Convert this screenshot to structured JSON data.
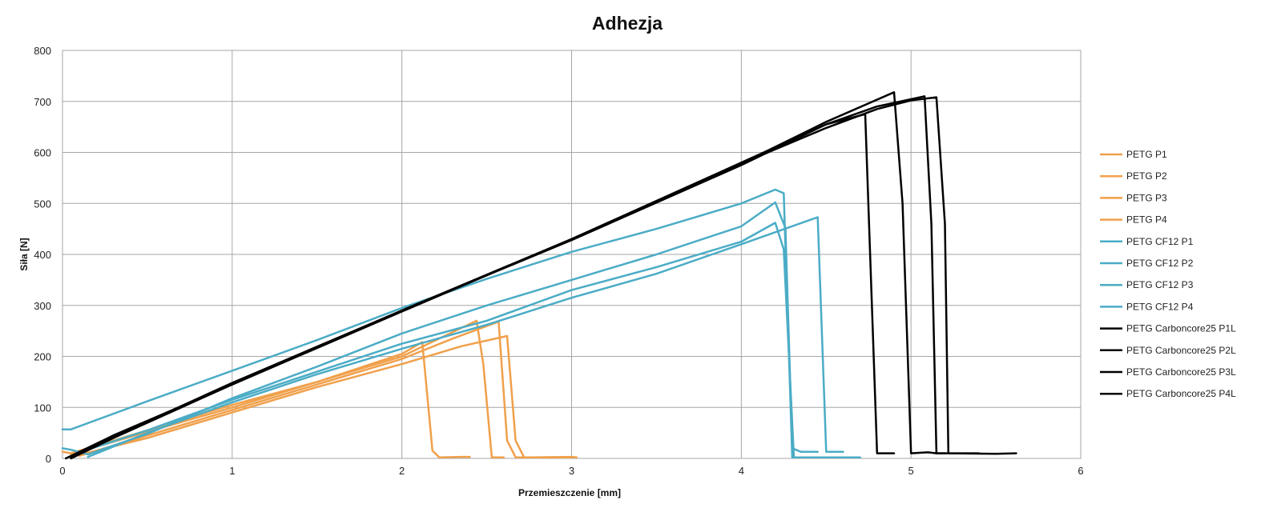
{
  "chart_data": {
    "type": "line",
    "title": "Adhezja",
    "xlabel": "Przemieszczenie [mm]",
    "ylabel": "Siła [N]",
    "xlim": [
      0,
      6
    ],
    "ylim": [
      0,
      800
    ],
    "xticks": [
      "0",
      "1",
      "2",
      "3",
      "4",
      "5",
      "6"
    ],
    "yticks": [
      "0",
      "100",
      "200",
      "300",
      "400",
      "500",
      "600",
      "700",
      "800"
    ],
    "grid": true,
    "legend_position": "right",
    "colors": {
      "petg": "#F0A04B",
      "cf12": "#4BACC6",
      "carboncore": "#000000",
      "grid": "#A6A6A6"
    },
    "series": [
      {
        "name": "PETG P1",
        "color": "#F0A04B",
        "points": [
          [
            0,
            13
          ],
          [
            0.05,
            10
          ],
          [
            0.15,
            20
          ],
          [
            0.5,
            55
          ],
          [
            1.0,
            105
          ],
          [
            1.5,
            150
          ],
          [
            2.0,
            205
          ],
          [
            2.12,
            228
          ],
          [
            2.18,
            15
          ],
          [
            2.22,
            2
          ],
          [
            2.35,
            3
          ],
          [
            2.4,
            3
          ]
        ]
      },
      {
        "name": "PETG P2",
        "color": "#F0A04B",
        "points": [
          [
            0.05,
            8
          ],
          [
            0.15,
            18
          ],
          [
            0.5,
            52
          ],
          [
            1.0,
            100
          ],
          [
            1.5,
            150
          ],
          [
            2.0,
            200
          ],
          [
            2.44,
            270
          ],
          [
            2.48,
            185
          ],
          [
            2.53,
            2
          ],
          [
            2.6,
            2
          ]
        ]
      },
      {
        "name": "PETG P3",
        "color": "#F0A04B",
        "points": [
          [
            0.1,
            5
          ],
          [
            0.5,
            45
          ],
          [
            1.0,
            95
          ],
          [
            1.5,
            145
          ],
          [
            2.0,
            195
          ],
          [
            2.3,
            235
          ],
          [
            2.57,
            268
          ],
          [
            2.62,
            35
          ],
          [
            2.67,
            2
          ],
          [
            2.75,
            2
          ],
          [
            3.0,
            3
          ],
          [
            3.03,
            2
          ]
        ]
      },
      {
        "name": "PETG P4",
        "color": "#F0A04B",
        "points": [
          [
            0.05,
            3
          ],
          [
            0.5,
            40
          ],
          [
            1.0,
            90
          ],
          [
            1.5,
            140
          ],
          [
            2.0,
            185
          ],
          [
            2.35,
            220
          ],
          [
            2.62,
            240
          ],
          [
            2.67,
            35
          ],
          [
            2.72,
            2
          ],
          [
            2.9,
            2
          ],
          [
            3.0,
            2
          ]
        ]
      },
      {
        "name": "PETG CF12 P1",
        "color": "#4BACC6",
        "points": [
          [
            0,
            57
          ],
          [
            0.05,
            57
          ],
          [
            0.5,
            112
          ],
          [
            1.0,
            172
          ],
          [
            1.5,
            232
          ],
          [
            2.0,
            295
          ],
          [
            2.5,
            352
          ],
          [
            3.0,
            405
          ],
          [
            3.5,
            450
          ],
          [
            4.0,
            500
          ],
          [
            4.2,
            527
          ],
          [
            4.25,
            520
          ],
          [
            4.3,
            2
          ],
          [
            4.7,
            2
          ]
        ]
      },
      {
        "name": "PETG CF12 P2",
        "color": "#4BACC6",
        "points": [
          [
            0,
            20
          ],
          [
            0.05,
            17
          ],
          [
            0.15,
            8
          ],
          [
            0.5,
            48
          ],
          [
            1.0,
            118
          ],
          [
            1.5,
            180
          ],
          [
            2.0,
            245
          ],
          [
            2.5,
            300
          ],
          [
            3.0,
            350
          ],
          [
            3.5,
            400
          ],
          [
            4.0,
            455
          ],
          [
            4.2,
            502
          ],
          [
            4.26,
            452
          ],
          [
            4.3,
            20
          ],
          [
            4.35,
            13
          ],
          [
            4.45,
            13
          ]
        ]
      },
      {
        "name": "PETG CF12 P3",
        "color": "#4BACC6",
        "points": [
          [
            0.1,
            12
          ],
          [
            0.5,
            55
          ],
          [
            1.0,
            115
          ],
          [
            1.5,
            170
          ],
          [
            2.0,
            225
          ],
          [
            2.5,
            270
          ],
          [
            3.0,
            330
          ],
          [
            3.5,
            375
          ],
          [
            4.0,
            425
          ],
          [
            4.2,
            462
          ],
          [
            4.25,
            410
          ],
          [
            4.31,
            2
          ],
          [
            4.5,
            2
          ]
        ]
      },
      {
        "name": "PETG CF12 P4",
        "color": "#4BACC6",
        "points": [
          [
            0.15,
            3
          ],
          [
            0.5,
            50
          ],
          [
            1.0,
            110
          ],
          [
            1.5,
            165
          ],
          [
            2.0,
            215
          ],
          [
            2.5,
            262
          ],
          [
            3.0,
            315
          ],
          [
            3.5,
            362
          ],
          [
            4.0,
            420
          ],
          [
            4.45,
            473
          ],
          [
            4.5,
            13
          ],
          [
            4.6,
            13
          ]
        ]
      },
      {
        "name": "PETG Carboncore25 P1L",
        "color": "#000000",
        "points": [
          [
            0.02,
            0
          ],
          [
            0.3,
            45
          ],
          [
            1.0,
            145
          ],
          [
            2.0,
            290
          ],
          [
            3.0,
            430
          ],
          [
            4.0,
            580
          ],
          [
            4.5,
            655
          ],
          [
            4.73,
            675
          ],
          [
            4.8,
            10
          ],
          [
            4.9,
            10
          ]
        ]
      },
      {
        "name": "PETG Carboncore25 P2L",
        "color": "#000000",
        "points": [
          [
            0.05,
            0
          ],
          [
            0.3,
            40
          ],
          [
            1.0,
            145
          ],
          [
            2.0,
            288
          ],
          [
            3.0,
            430
          ],
          [
            4.0,
            578
          ],
          [
            4.5,
            660
          ],
          [
            4.9,
            718
          ],
          [
            4.95,
            500
          ],
          [
            5.0,
            10
          ],
          [
            5.1,
            12
          ],
          [
            5.15,
            10
          ],
          [
            5.2,
            10
          ]
        ]
      },
      {
        "name": "PETG Carboncore25 P3L",
        "color": "#000000",
        "points": [
          [
            0.05,
            2
          ],
          [
            0.3,
            42
          ],
          [
            1.0,
            148
          ],
          [
            2.0,
            290
          ],
          [
            3.0,
            428
          ],
          [
            4.0,
            575
          ],
          [
            4.5,
            655
          ],
          [
            4.8,
            690
          ],
          [
            5.08,
            710
          ],
          [
            5.12,
            460
          ],
          [
            5.15,
            10
          ],
          [
            5.4,
            10
          ]
        ]
      },
      {
        "name": "PETG Carboncore25 P4L",
        "color": "#000000",
        "points": [
          [
            0.05,
            2
          ],
          [
            0.3,
            45
          ],
          [
            1.0,
            145
          ],
          [
            2.0,
            290
          ],
          [
            3.0,
            430
          ],
          [
            4.0,
            578
          ],
          [
            4.5,
            648
          ],
          [
            4.8,
            685
          ],
          [
            5.0,
            702
          ],
          [
            5.15,
            708
          ],
          [
            5.2,
            460
          ],
          [
            5.22,
            10
          ],
          [
            5.5,
            9
          ],
          [
            5.62,
            10
          ]
        ]
      }
    ]
  }
}
